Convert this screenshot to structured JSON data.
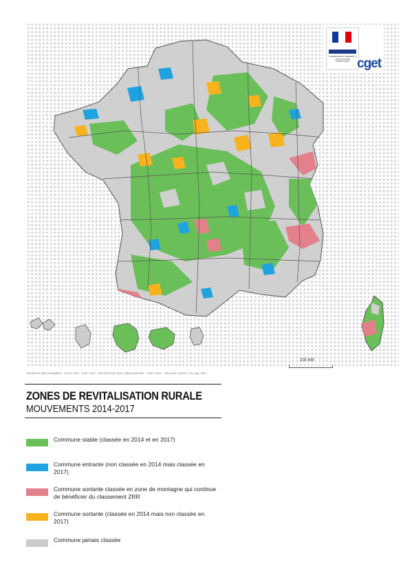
{
  "logo": {
    "caption": "COMMISSARIAT GÉNÉRAL À L'ÉGALITÉ DES TERRITOIRES",
    "brand": "cget",
    "flag_colors": [
      "#0d3a9a",
      "#ffffff",
      "#e1000f"
    ]
  },
  "map": {
    "sources": "SOURCES DES DONNÉES : DGCL 2017, CGET 2017, IGN GEOFLA 2015 • RÉALISATION : CGET 2017 - CELLULE CARTO, PN, MA, 2017",
    "scale_label": "200 KM",
    "colors": {
      "stable": "#6bbf59",
      "entrante": "#1fa3e0",
      "montagne": "#e3808a",
      "sortante": "#f7b21c",
      "jamais": "#d0d0d0",
      "border": "#555555"
    }
  },
  "title": "ZONES DE REVITALISATION RURALE",
  "subtitle": "MOUVEMENTS 2014-2017",
  "legend": [
    {
      "label": "Commune stable (classée en 2014 et en 2017)",
      "color": "#6bbf59"
    },
    {
      "label": "Commune entrante (non classée en 2014 mais classée en 2017)",
      "color": "#1fa3e0"
    },
    {
      "label": "Commune sortante classée en zone de montagne qui continue de bénéficier du classement ZRR",
      "color": "#e3808a"
    },
    {
      "label": "Commune sortante (classée en 2014 mais non classée en 2017)",
      "color": "#f7b21c"
    },
    {
      "label": "Commune jamais classée",
      "color": "#cccccc"
    }
  ]
}
